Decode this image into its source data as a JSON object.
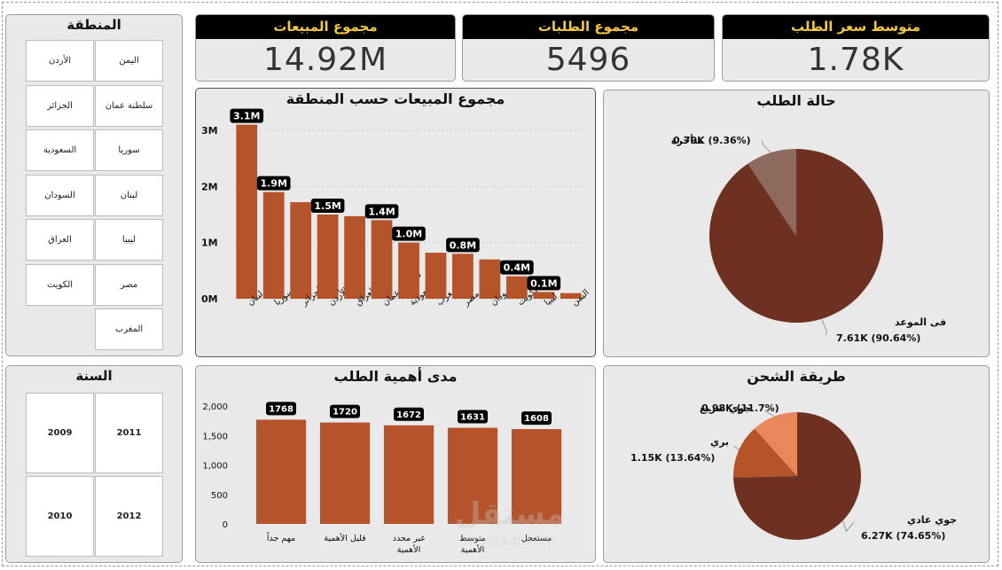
{
  "region_slicer": {
    "title": "المنطقة",
    "items": [
      "اليمن",
      "الأردن",
      "سلطنة عمان",
      "الجزائر",
      "سوريا",
      "السعودية",
      "لبنان",
      "السودان",
      "ليبيا",
      "العراق",
      "مصر",
      "الكويت",
      "المغرب"
    ]
  },
  "year_slicer": {
    "title": "السنة",
    "items": [
      "2011",
      "2009",
      "2012",
      "2010"
    ]
  },
  "kpis": [
    {
      "title": "مجموع المبيعات",
      "value": "14.92M"
    },
    {
      "title": "مجموع الطلبات",
      "value": "5496"
    },
    {
      "title": "متوسط سعر الطلب",
      "value": "1.78K"
    }
  ],
  "watermark": {
    "brand": "مستقل",
    "url": "mostaql.com"
  },
  "chart_data": [
    {
      "type": "bar",
      "title": "مجموع المبيعات حسب المنطقة",
      "categories": [
        "لبنان",
        "سوريا",
        "الجزائر",
        "الأردن",
        "العراق",
        "سلطنة عمان",
        "السعودية",
        "المغرب",
        "مصر",
        "السودان",
        "الكويت",
        "ليبيا",
        "اليمن"
      ],
      "values": [
        3.1,
        1.9,
        1.72,
        1.5,
        1.47,
        1.4,
        1.0,
        0.82,
        0.8,
        0.7,
        0.4,
        0.12,
        0.1
      ],
      "data_labels": [
        "3.1M",
        "1.9M",
        "",
        "1.5M",
        "",
        "1.4M",
        "1.0M",
        "",
        "0.8M",
        "",
        "0.4M",
        "0.1M",
        ""
      ],
      "yticks": [
        "0M",
        "1M",
        "2M",
        "3M"
      ],
      "ylim": [
        0,
        3.3
      ],
      "grid": true,
      "color": "#b5532a"
    },
    {
      "type": "pie",
      "title": "حالة الطلب",
      "slices": [
        {
          "label": "فى الموعد",
          "value": 7.61,
          "text": "7.61K (90.64%)",
          "color": "#6e3020"
        },
        {
          "label": "متأخرة",
          "value": 0.79,
          "text": "0.79K (9.36%)",
          "color": "#8e6a5e"
        }
      ]
    },
    {
      "type": "bar",
      "title": "مدى أهمية الطلب",
      "categories": [
        "مهم جداً",
        "قليل الأهمية",
        "غير محدد الأهمية",
        "متوسط الأهمية",
        "مستعجل"
      ],
      "category_lines": [
        [
          "مهم جداً"
        ],
        [
          "قليل الأهمية"
        ],
        [
          "غير محدد",
          "الأهمية"
        ],
        [
          "متوسط",
          "الأهمية"
        ],
        [
          "مستعجل"
        ]
      ],
      "values": [
        1768,
        1720,
        1672,
        1631,
        1608
      ],
      "data_labels": [
        "1768",
        "1720",
        "1672",
        "1631",
        "1608"
      ],
      "yticks": [
        "0",
        "500",
        "1,000",
        "1,500",
        "2,000"
      ],
      "ylim": [
        0,
        2000
      ],
      "grid": false,
      "color": "#b5532a"
    },
    {
      "type": "pie",
      "title": "طريقة الشحن",
      "slices": [
        {
          "label": "جوي عادي",
          "value": 6.27,
          "text": "6.27K (74.65%)",
          "color": "#6e3020"
        },
        {
          "label": "بري",
          "value": 1.15,
          "text": "1.15K (13.64%)",
          "color": "#b5532a"
        },
        {
          "label": "جوي سريع",
          "value": 0.98,
          "text": "0.98K (11.7%)",
          "color": "#e8875c"
        }
      ]
    }
  ]
}
